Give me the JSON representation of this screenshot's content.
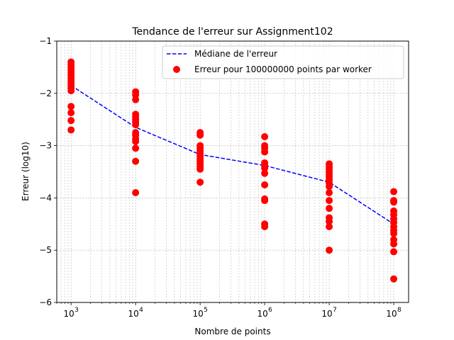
{
  "chart_data": {
    "type": "scatter",
    "title": "Tendance de l'erreur sur Assignment102",
    "xlabel": "Nombre de points",
    "ylabel": "Erreur (log10)",
    "xscale": "log",
    "xlim": [
      600,
      170000000
    ],
    "ylim": [
      -6,
      -1
    ],
    "x_ticks": [
      1000,
      10000,
      100000,
      1000000,
      10000000,
      100000000
    ],
    "x_tick_labels": [
      "10",
      "10",
      "10",
      "10",
      "10",
      "10"
    ],
    "x_tick_exponents": [
      "3",
      "4",
      "5",
      "6",
      "7",
      "8"
    ],
    "y_ticks": [
      -6,
      -5,
      -4,
      -3,
      -2,
      -1
    ],
    "y_tick_labels": [
      "−6",
      "−5",
      "−4",
      "−3",
      "−2",
      "−1"
    ],
    "grid": true,
    "legend_position": "top-right",
    "series": [
      {
        "name": "Médiane de l'erreur",
        "kind": "line",
        "style": "dashed",
        "color": "#0000ff",
        "points": [
          {
            "x": 1000,
            "y": -1.85
          },
          {
            "x": 10000,
            "y": -2.65
          },
          {
            "x": 100000,
            "y": -3.17
          },
          {
            "x": 1000000,
            "y": -3.38
          },
          {
            "x": 10000000,
            "y": -3.7
          },
          {
            "x": 100000000,
            "y": -4.5
          }
        ]
      },
      {
        "name": "Erreur pour 100000000 points par worker",
        "kind": "scatter",
        "color": "#ff0000",
        "points": [
          {
            "x": 1000,
            "y": -1.4
          },
          {
            "x": 1000,
            "y": -1.45
          },
          {
            "x": 1000,
            "y": -1.5
          },
          {
            "x": 1000,
            "y": -1.55
          },
          {
            "x": 1000,
            "y": -1.6
          },
          {
            "x": 1000,
            "y": -1.65
          },
          {
            "x": 1000,
            "y": -1.7
          },
          {
            "x": 1000,
            "y": -1.75
          },
          {
            "x": 1000,
            "y": -1.8
          },
          {
            "x": 1000,
            "y": -1.85
          },
          {
            "x": 1000,
            "y": -1.9
          },
          {
            "x": 1000,
            "y": -1.95
          },
          {
            "x": 1000,
            "y": -2.25
          },
          {
            "x": 1000,
            "y": -2.37
          },
          {
            "x": 1000,
            "y": -2.52
          },
          {
            "x": 1000,
            "y": -2.7
          },
          {
            "x": 10000,
            "y": -1.97
          },
          {
            "x": 10000,
            "y": -2.03
          },
          {
            "x": 10000,
            "y": -2.12
          },
          {
            "x": 10000,
            "y": -2.4
          },
          {
            "x": 10000,
            "y": -2.45
          },
          {
            "x": 10000,
            "y": -2.5
          },
          {
            "x": 10000,
            "y": -2.55
          },
          {
            "x": 10000,
            "y": -2.6
          },
          {
            "x": 10000,
            "y": -2.75
          },
          {
            "x": 10000,
            "y": -2.8
          },
          {
            "x": 10000,
            "y": -2.87
          },
          {
            "x": 10000,
            "y": -2.92
          },
          {
            "x": 10000,
            "y": -3.05
          },
          {
            "x": 10000,
            "y": -3.3
          },
          {
            "x": 10000,
            "y": -3.9
          },
          {
            "x": 100000,
            "y": -2.75
          },
          {
            "x": 100000,
            "y": -2.8
          },
          {
            "x": 100000,
            "y": -3.0
          },
          {
            "x": 100000,
            "y": -3.05
          },
          {
            "x": 100000,
            "y": -3.1
          },
          {
            "x": 100000,
            "y": -3.15
          },
          {
            "x": 100000,
            "y": -3.2
          },
          {
            "x": 100000,
            "y": -3.25
          },
          {
            "x": 100000,
            "y": -3.3
          },
          {
            "x": 100000,
            "y": -3.35
          },
          {
            "x": 100000,
            "y": -3.4
          },
          {
            "x": 100000,
            "y": -3.45
          },
          {
            "x": 100000,
            "y": -3.7
          },
          {
            "x": 1000000,
            "y": -2.83
          },
          {
            "x": 1000000,
            "y": -3.0
          },
          {
            "x": 1000000,
            "y": -3.05
          },
          {
            "x": 1000000,
            "y": -3.12
          },
          {
            "x": 1000000,
            "y": -3.33
          },
          {
            "x": 1000000,
            "y": -3.38
          },
          {
            "x": 1000000,
            "y": -3.43
          },
          {
            "x": 1000000,
            "y": -3.53
          },
          {
            "x": 1000000,
            "y": -3.75
          },
          {
            "x": 1000000,
            "y": -4.02
          },
          {
            "x": 1000000,
            "y": -4.05
          },
          {
            "x": 1000000,
            "y": -4.5
          },
          {
            "x": 1000000,
            "y": -4.55
          },
          {
            "x": 10000000,
            "y": -3.35
          },
          {
            "x": 10000000,
            "y": -3.4
          },
          {
            "x": 10000000,
            "y": -3.45
          },
          {
            "x": 10000000,
            "y": -3.5
          },
          {
            "x": 10000000,
            "y": -3.55
          },
          {
            "x": 10000000,
            "y": -3.6
          },
          {
            "x": 10000000,
            "y": -3.65
          },
          {
            "x": 10000000,
            "y": -3.72
          },
          {
            "x": 10000000,
            "y": -3.78
          },
          {
            "x": 10000000,
            "y": -3.9
          },
          {
            "x": 10000000,
            "y": -4.05
          },
          {
            "x": 10000000,
            "y": -4.2
          },
          {
            "x": 10000000,
            "y": -4.38
          },
          {
            "x": 10000000,
            "y": -4.45
          },
          {
            "x": 10000000,
            "y": -4.55
          },
          {
            "x": 10000000,
            "y": -5.0
          },
          {
            "x": 100000000,
            "y": -3.88
          },
          {
            "x": 100000000,
            "y": -4.05
          },
          {
            "x": 100000000,
            "y": -4.08
          },
          {
            "x": 100000000,
            "y": -4.25
          },
          {
            "x": 100000000,
            "y": -4.32
          },
          {
            "x": 100000000,
            "y": -4.4
          },
          {
            "x": 100000000,
            "y": -4.47
          },
          {
            "x": 100000000,
            "y": -4.55
          },
          {
            "x": 100000000,
            "y": -4.62
          },
          {
            "x": 100000000,
            "y": -4.68
          },
          {
            "x": 100000000,
            "y": -4.8
          },
          {
            "x": 100000000,
            "y": -4.88
          },
          {
            "x": 100000000,
            "y": -5.03
          },
          {
            "x": 100000000,
            "y": -5.55
          }
        ]
      }
    ]
  }
}
